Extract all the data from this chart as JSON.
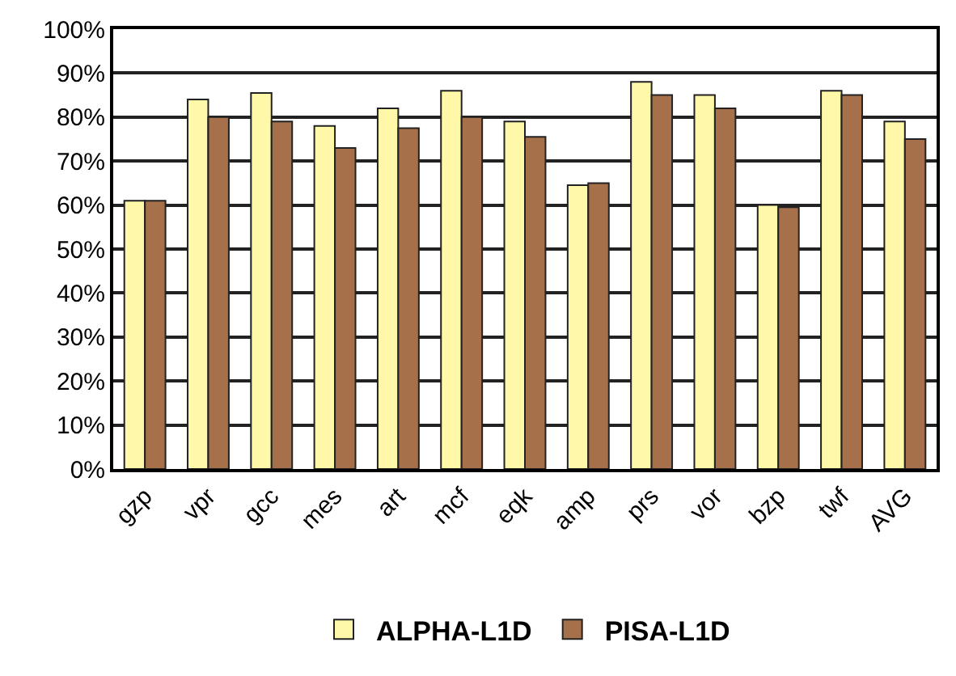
{
  "chart_data": {
    "type": "bar",
    "categories": [
      "gzp",
      "vpr",
      "gcc",
      "mes",
      "art",
      "mcf",
      "eqk",
      "amp",
      "prs",
      "vor",
      "bzp",
      "twf",
      "AVG"
    ],
    "series": [
      {
        "name": "ALPHA-L1D",
        "color": "#fff8a8",
        "values": [
          61,
          84,
          85.5,
          78,
          82,
          86,
          79,
          64.5,
          88,
          85,
          60,
          86,
          79
        ]
      },
      {
        "name": "PISA-L1D",
        "color": "#a5704a",
        "values": [
          61,
          80,
          79,
          73,
          77.5,
          80,
          75.5,
          65,
          85,
          82,
          59.5,
          85,
          75
        ]
      }
    ],
    "ylim": [
      0,
      100
    ],
    "yticks": [
      {
        "value": 0,
        "label": "0%"
      },
      {
        "value": 10,
        "label": "10%"
      },
      {
        "value": 20,
        "label": "20%"
      },
      {
        "value": 30,
        "label": "30%"
      },
      {
        "value": 40,
        "label": "40%"
      },
      {
        "value": 50,
        "label": "50%"
      },
      {
        "value": 60,
        "label": "60%"
      },
      {
        "value": 70,
        "label": "70%"
      },
      {
        "value": 80,
        "label": "80%"
      },
      {
        "value": 90,
        "label": "90%"
      },
      {
        "value": 100,
        "label": "100%"
      }
    ],
    "grid": "y",
    "legend": "bottom"
  }
}
